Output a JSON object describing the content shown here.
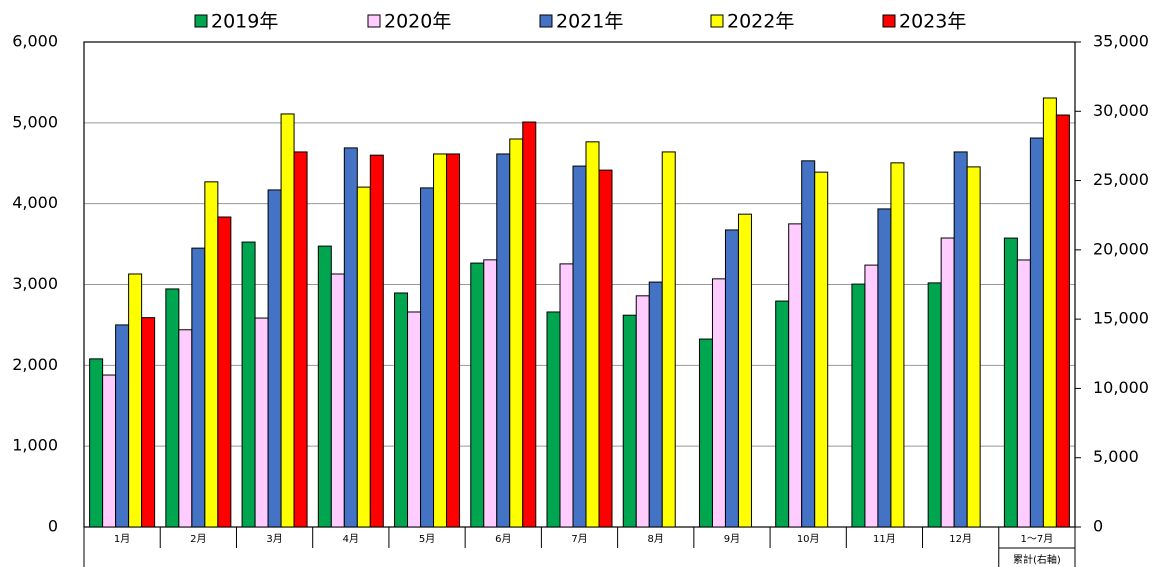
{
  "chart_data": [
    {
      "type": "bar",
      "categories": [
        "1月",
        "2月",
        "3月",
        "4月",
        "5月",
        "6月",
        "7月",
        "8月",
        "9月",
        "10月",
        "11月",
        "12月"
      ],
      "series": [
        {
          "name": "2019年",
          "color": "#00a550",
          "values": [
            2080,
            2945,
            3525,
            3475,
            2895,
            3265,
            2660,
            2620,
            2325,
            2795,
            3005,
            3020
          ]
        },
        {
          "name": "2020年",
          "color": "#ffccff",
          "values": [
            1880,
            2440,
            2585,
            3130,
            2660,
            3305,
            3255,
            2860,
            3070,
            3750,
            3240,
            3575
          ]
        },
        {
          "name": "2021年",
          "color": "#4472c4",
          "values": [
            2500,
            3450,
            4170,
            4690,
            4195,
            4615,
            4465,
            3030,
            3675,
            4530,
            3935,
            4640
          ]
        },
        {
          "name": "2022年",
          "color": "#ffff00",
          "values": [
            3130,
            4270,
            5110,
            4205,
            4615,
            4800,
            4765,
            4640,
            3870,
            4390,
            4505,
            4455
          ]
        },
        {
          "name": "2023年",
          "color": "#ff0000",
          "values": [
            2590,
            3835,
            4640,
            4600,
            4615,
            5010,
            4415,
            null,
            null,
            null,
            null,
            null
          ]
        }
      ],
      "ylim": [
        0,
        6000
      ],
      "yticks": [
        0,
        {
          "value": 1000,
          "label": "1,000"
        },
        {
          "value": 2000,
          "label": "2,000"
        },
        {
          "value": 3000,
          "label": "3,000"
        },
        {
          "value": 4000,
          "label": "4,000"
        },
        {
          "value": 5000,
          "label": "5,000"
        },
        {
          "value": 6000,
          "label": "6,000"
        }
      ],
      "grid": true
    },
    {
      "type": "bar",
      "categories": [
        "1～7月"
      ],
      "note": "累計(右軸)",
      "series": [
        {
          "color": "#00a550",
          "axis": "y2",
          "values": [
            20850
          ]
        },
        {
          "color": "#ffccff",
          "axis": "y2",
          "values": [
            19270
          ]
        },
        {
          "color": "#4472c4",
          "axis": "y2",
          "values": [
            28070
          ]
        },
        {
          "color": "#ffff00",
          "axis": "y2",
          "values": [
            30960
          ]
        },
        {
          "color": "#ff0000",
          "axis": "y2",
          "values": [
            29730
          ]
        }
      ],
      "y2lim": [
        0,
        35000
      ],
      "y2ticks": [
        0,
        {
          "value": 5000,
          "label": "5,000"
        },
        {
          "value": 10000,
          "label": "10,000"
        },
        {
          "value": 15000,
          "label": "15,000"
        },
        {
          "value": 20000,
          "label": "20,000"
        },
        {
          "value": 25000,
          "label": "25,000"
        },
        {
          "value": 30000,
          "label": "30,000"
        },
        {
          "value": 35000,
          "label": "35,000"
        }
      ]
    }
  ]
}
